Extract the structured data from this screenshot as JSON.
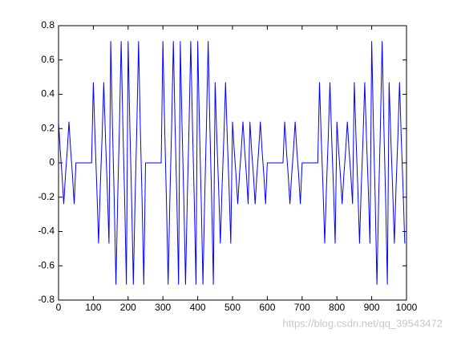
{
  "chart_data": {
    "type": "line",
    "x": [
      0,
      5,
      10,
      15,
      20,
      25,
      30,
      35,
      40,
      45,
      50,
      55,
      60,
      65,
      70,
      75,
      80,
      85,
      90,
      95,
      100,
      105,
      110,
      115,
      120,
      125,
      130,
      135,
      140,
      145,
      150,
      155,
      160,
      165,
      170,
      175,
      180,
      185,
      190,
      195,
      200,
      205,
      210,
      215,
      220,
      225,
      230,
      235,
      240,
      245,
      250,
      255,
      260,
      265,
      270,
      275,
      280,
      285,
      290,
      295,
      300,
      305,
      310,
      315,
      320,
      325,
      330,
      335,
      340,
      345,
      350,
      355,
      360,
      365,
      370,
      375,
      380,
      385,
      390,
      395,
      400,
      405,
      410,
      415,
      420,
      425,
      430,
      435,
      440,
      445,
      450,
      455,
      460,
      465,
      470,
      475,
      480,
      485,
      490,
      495,
      500,
      505,
      510,
      515,
      520,
      525,
      530,
      535,
      540,
      545,
      550,
      555,
      560,
      565,
      570,
      575,
      580,
      585,
      590,
      595,
      600,
      605,
      610,
      615,
      620,
      625,
      630,
      635,
      640,
      645,
      650,
      655,
      660,
      665,
      670,
      675,
      680,
      685,
      690,
      695,
      700,
      705,
      710,
      715,
      720,
      725,
      730,
      735,
      740,
      745,
      750,
      755,
      760,
      765,
      770,
      775,
      780,
      785,
      790,
      795,
      800,
      805,
      810,
      815,
      820,
      825,
      830,
      835,
      840,
      845,
      850,
      855,
      860,
      865,
      870,
      875,
      880,
      885,
      890,
      895,
      900,
      905,
      910,
      915,
      920,
      925,
      930,
      935,
      940,
      945,
      950,
      955,
      960,
      965,
      970,
      975,
      980,
      985,
      990,
      995
    ],
    "series": [
      {
        "color": "#0000ff",
        "values": [
          0.24,
          0.07,
          -0.07,
          -0.24,
          -0.07,
          0.07,
          0.24,
          0.07,
          -0.07,
          -0.24,
          0,
          0,
          0,
          0,
          0,
          0,
          0,
          0,
          0,
          0,
          0.47,
          0.14,
          -0.14,
          -0.47,
          -0.14,
          0.14,
          0.47,
          0.14,
          -0.14,
          -0.47,
          0.71,
          0.21,
          -0.21,
          -0.71,
          -0.21,
          0.21,
          0.71,
          0.21,
          -0.21,
          -0.71,
          0.71,
          0.21,
          -0.21,
          -0.71,
          -0.21,
          0.21,
          0.71,
          0.21,
          -0.21,
          -0.71,
          0,
          0,
          0,
          0,
          0,
          0,
          0,
          0,
          0,
          0,
          0.71,
          0.21,
          -0.21,
          -0.71,
          -0.21,
          0.21,
          0.71,
          0.21,
          -0.21,
          -0.71,
          0.71,
          0.21,
          -0.21,
          -0.71,
          -0.21,
          0.21,
          0.71,
          0.21,
          -0.21,
          -0.71,
          0.71,
          0.21,
          -0.21,
          -0.71,
          -0.21,
          0.21,
          0.71,
          0.21,
          -0.21,
          -0.71,
          0.47,
          0.14,
          -0.14,
          -0.47,
          -0.14,
          0.14,
          0.47,
          0.14,
          -0.14,
          -0.47,
          0.24,
          0.07,
          -0.07,
          -0.24,
          -0.07,
          0.07,
          0.24,
          0.07,
          -0.07,
          -0.24,
          0.24,
          0.07,
          -0.07,
          -0.24,
          -0.07,
          0.07,
          0.24,
          0.07,
          -0.07,
          -0.24,
          0,
          0,
          0,
          0,
          0,
          0,
          0,
          0,
          0,
          0,
          0.24,
          0.07,
          -0.07,
          -0.24,
          -0.07,
          0.07,
          0.24,
          0.07,
          -0.07,
          -0.24,
          0,
          0,
          0,
          0,
          0,
          0,
          0,
          0,
          0,
          0,
          0.47,
          0.14,
          -0.14,
          -0.47,
          -0.14,
          0.14,
          0.47,
          0.14,
          -0.14,
          -0.47,
          0.24,
          0.07,
          -0.07,
          -0.24,
          -0.07,
          0.07,
          0.24,
          0.07,
          -0.07,
          -0.24,
          0.47,
          0.14,
          -0.14,
          -0.47,
          -0.14,
          0.14,
          0.47,
          0.14,
          -0.14,
          -0.47,
          0.71,
          0.21,
          -0.21,
          -0.71,
          -0.21,
          0.21,
          0.71,
          0.21,
          -0.21,
          -0.71,
          0.47,
          0.14,
          -0.14,
          -0.47,
          -0.14,
          0.14,
          0.47,
          0.14,
          -0.14,
          -0.47
        ]
      }
    ],
    "xlim": [
      0,
      1000
    ],
    "xticks": [
      0,
      100,
      200,
      300,
      400,
      500,
      600,
      700,
      800,
      900,
      1000
    ],
    "ylim": [
      -0.8,
      0.8
    ],
    "yticks": [
      -0.8,
      -0.6,
      -0.4,
      -0.2,
      0,
      0.2,
      0.4,
      0.6,
      0.8
    ],
    "watermark": "https://blog.csdn.net/qq_39543472"
  }
}
